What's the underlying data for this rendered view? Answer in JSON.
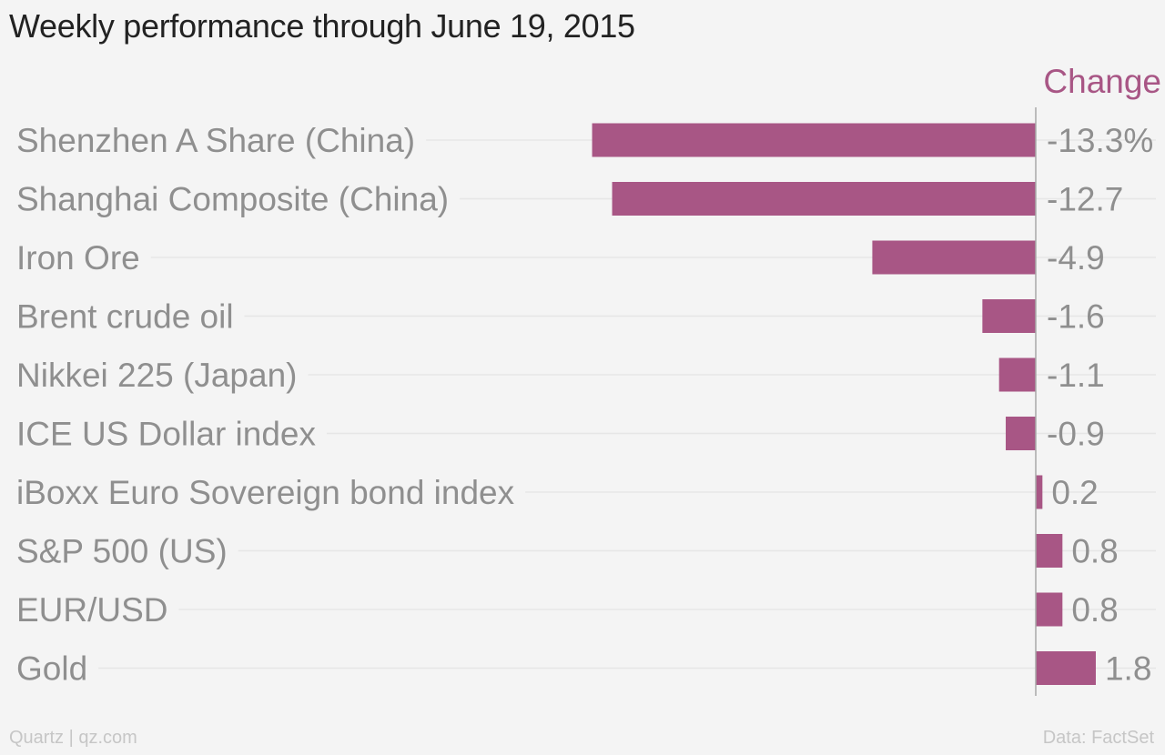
{
  "chart_data": {
    "type": "bar",
    "orientation": "horizontal",
    "title": "Weekly performance through June 19, 2015",
    "value_header": "Change",
    "categories": [
      "Shenzhen A Share (China)",
      "Shanghai Composite (China)",
      "Iron Ore",
      "Brent crude oil",
      "Nikkei 225 (Japan)",
      "ICE US Dollar index",
      "iBoxx Euro Sovereign bond index",
      "S&P 500 (US)",
      "EUR/USD",
      "Gold"
    ],
    "values": [
      -13.3,
      -12.7,
      -4.9,
      -1.6,
      -1.1,
      -0.9,
      0.2,
      0.8,
      0.8,
      1.8
    ],
    "value_labels": [
      "-13.3%",
      "-12.7",
      "-4.9",
      "-1.6",
      "-1.1",
      "-0.9",
      "0.2",
      "0.8",
      "0.8",
      "1.8"
    ],
    "xlim": [
      -13.3,
      1.8
    ],
    "grid": true,
    "bar_color": "#a85685",
    "accent_color": "#a85685"
  },
  "footer": {
    "source_left": "Quartz | qz.com",
    "source_right": "Data: FactSet"
  }
}
